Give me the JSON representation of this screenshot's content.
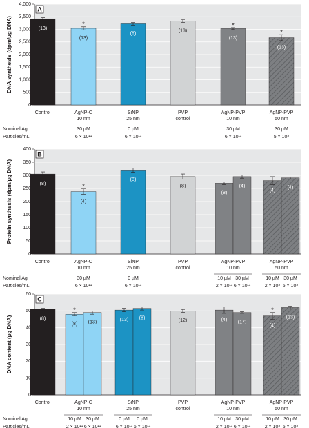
{
  "chart_data": [
    {
      "type": "bar",
      "panel": "A",
      "y_label": "DNA synthesis (dpm/µg DNA)",
      "ylim": [
        0,
        4000
      ],
      "yticks": [
        0,
        500,
        {
          "value": 1000,
          "label": "1,000"
        },
        {
          "value": 1500,
          "label": "1,500"
        },
        {
          "value": 2000,
          "label": "2,000"
        },
        {
          "value": 2500,
          "label": "2,500"
        },
        {
          "value": 3000,
          "label": "3,000"
        },
        {
          "value": 3500,
          "label": "3,500"
        },
        {
          "value": 4000,
          "label": "4,000"
        }
      ],
      "grid": true,
      "row_labels": [
        "Nominal Ag",
        "Particles/mL"
      ],
      "groups": [
        {
          "label": [
            "Control"
          ],
          "color": "#231f20",
          "bars": [
            {
              "value": 3420,
              "error": 40,
              "n": "(13)"
            }
          ]
        },
        {
          "label": [
            "AgNP-C",
            "10 nm"
          ],
          "color": "#8fd4f5",
          "bars": [
            {
              "value": 3040,
              "error": 60,
              "n": "(13)",
              "marker": "*",
              "nominal": "30 µM",
              "particles": "6 × 10¹¹"
            }
          ]
        },
        {
          "label": [
            "SiNP",
            "25 nm"
          ],
          "color": "#1c93c4",
          "bars": [
            {
              "value": 3220,
              "error": 50,
              "n": "(8)",
              "nominal": "0 µM",
              "particles": "6 × 10¹¹"
            }
          ]
        },
        {
          "label": [
            "PVP",
            "control"
          ],
          "color": "#d1d3d4",
          "bars": [
            {
              "value": 3330,
              "error": 50,
              "n": "(13)"
            }
          ]
        },
        {
          "label": [
            "AgNP-PVP",
            "10 nm"
          ],
          "color": "#808285",
          "bars": [
            {
              "value": 3030,
              "error": 40,
              "n": "(13)",
              "marker": "*",
              "nominal": "30 µM",
              "particles": "6 × 10¹¹"
            }
          ]
        },
        {
          "label": [
            "AgNP-PVP",
            "50 nm"
          ],
          "color": "#7d7f82",
          "hatch": true,
          "bars": [
            {
              "value": 2670,
              "error": 120,
              "n": "(13)",
              "marker": "*",
              "nominal": "30 µM",
              "particles": "5 × 10⁸"
            }
          ]
        }
      ]
    },
    {
      "type": "bar",
      "panel": "B",
      "y_label": "Protein synthesis (dpm/µg DNA)",
      "ylim": [
        0,
        400
      ],
      "yticks": [
        0,
        50,
        100,
        150,
        200,
        250,
        300,
        350,
        400
      ],
      "grid": true,
      "row_labels": [
        "Nominal Ag",
        "Particles/mL"
      ],
      "groups": [
        {
          "label": [
            "Control"
          ],
          "color": "#231f20",
          "bars": [
            {
              "value": 305,
              "error": 8,
              "n": "(8)"
            }
          ]
        },
        {
          "label": [
            "AgNP-C",
            "10 nm"
          ],
          "color": "#8fd4f5",
          "bars": [
            {
              "value": 238,
              "error": 10,
              "n": "(4)",
              "marker": "*",
              "nominal": "30 µM",
              "particles": "6 × 10¹¹"
            }
          ]
        },
        {
          "label": [
            "SiNP",
            "25 nm"
          ],
          "color": "#1c93c4",
          "bars": [
            {
              "value": 320,
              "error": 8,
              "n": "(8)",
              "nominal": "0 µM",
              "particles": "6 × 10¹¹"
            }
          ]
        },
        {
          "label": [
            "PVP",
            "control"
          ],
          "color": "#d1d3d4",
          "bars": [
            {
              "value": 295,
              "error": 10,
              "n": "(8)"
            }
          ]
        },
        {
          "label": [
            "AgNP-PVP",
            "10 nm"
          ],
          "color": "#808285",
          "bars": [
            {
              "value": 270,
              "error": 5,
              "n": "(8)",
              "nominal": "10 µM",
              "particles": "2 × 10¹¹"
            },
            {
              "value": 295,
              "error": 6,
              "n": "(4)",
              "nominal": "30 µM",
              "particles": "6 × 10¹¹"
            }
          ]
        },
        {
          "label": [
            "AgNP-PVP",
            "50 nm"
          ],
          "color": "#7d7f82",
          "hatch": true,
          "bars": [
            {
              "value": 280,
              "error": 15,
              "n": "(4)",
              "nominal": "10 µM",
              "particles": "2 × 10⁸"
            },
            {
              "value": 290,
              "error": 4,
              "n": "(4)",
              "nominal": "30 µM",
              "particles": "5 × 10⁸"
            }
          ]
        }
      ]
    },
    {
      "type": "bar",
      "panel": "C",
      "y_label": "DNA content (µg DNA)",
      "ylim": [
        0,
        60
      ],
      "yticks": [
        0,
        10,
        20,
        30,
        40,
        50,
        60
      ],
      "grid": true,
      "row_labels": [
        "Nominal Ag",
        "Particles/mL"
      ],
      "groups": [
        {
          "label": [
            "Control"
          ],
          "color": "#231f20",
          "bars": [
            {
              "value": 51,
              "error": 0.5,
              "n": "(8)"
            }
          ]
        },
        {
          "label": [
            "AgNP-C",
            "10 nm"
          ],
          "color": "#8fd4f5",
          "bars": [
            {
              "value": 48,
              "error": 1,
              "n": "(8)",
              "marker": "*",
              "nominal": "10 µM",
              "particles": "2 × 10¹¹"
            },
            {
              "value": 49,
              "error": 1,
              "n": "(13)",
              "nominal": "30 µM",
              "particles": "6 × 10¹¹"
            }
          ]
        },
        {
          "label": [
            "SiNP",
            "25 nm"
          ],
          "color": "#1c93c4",
          "bars": [
            {
              "value": 50.5,
              "error": 1,
              "n": "(13)",
              "nominal": "0 µM",
              "particles": "6 × 10¹¹"
            },
            {
              "value": 51.5,
              "error": 1,
              "n": "(8)",
              "nominal": "0 µM",
              "particles": "6 × 10¹¹"
            }
          ]
        },
        {
          "label": [
            "PVP",
            "control"
          ],
          "color": "#d1d3d4",
          "bars": [
            {
              "value": 50,
              "error": 0.8,
              "n": "(12)"
            }
          ]
        },
        {
          "label": [
            "AgNP-PVP",
            "10 nm"
          ],
          "color": "#808285",
          "bars": [
            {
              "value": 50.5,
              "error": 2,
              "n": "(4)",
              "nominal": "10 µM",
              "particles": "2 × 10¹¹"
            },
            {
              "value": 49,
              "error": 0.5,
              "n": "(17)",
              "nominal": "30 µM",
              "particles": "6 × 10¹¹"
            }
          ]
        },
        {
          "label": [
            "AgNP-PVP",
            "50 nm"
          ],
          "color": "#7d7f82",
          "hatch": true,
          "bars": [
            {
              "value": 47,
              "error": 2,
              "n": "(4)",
              "marker": "*",
              "nominal": "10 µM",
              "particles": "2 × 10⁸"
            },
            {
              "value": 52,
              "error": 0.8,
              "n": "(13)",
              "nominal": "30 µM",
              "particles": "5 × 10⁸"
            }
          ]
        }
      ]
    }
  ]
}
